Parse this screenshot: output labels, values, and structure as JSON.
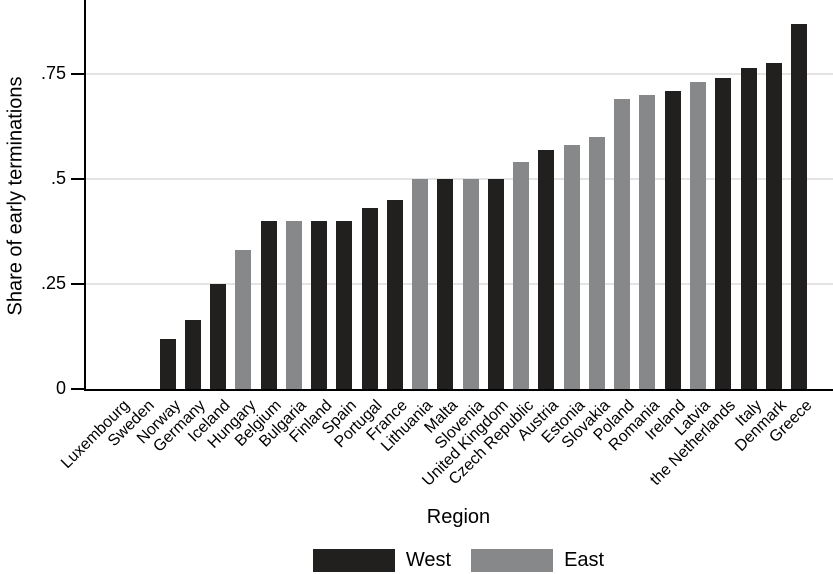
{
  "chart_data": {
    "type": "bar",
    "title": "",
    "xlabel": "Region",
    "ylabel": "Share of early terminations",
    "ylim": [
      0,
      0.92
    ],
    "grid": "horizontal",
    "legend_position": "bottom-center",
    "yticks": [
      {
        "value": 0,
        "label": "0"
      },
      {
        "value": 0.25,
        "label": ".25"
      },
      {
        "value": 0.5,
        "label": ".5"
      },
      {
        "value": 0.75,
        "label": ".75"
      }
    ],
    "legend": [
      {
        "label": "West",
        "color": "#221f1f"
      },
      {
        "label": "East",
        "color": "#87888a"
      }
    ],
    "colors": {
      "West": "#221f1f",
      "East": "#87888a"
    },
    "bars": [
      {
        "country": "Luxembourg",
        "value": 0,
        "region": "West"
      },
      {
        "country": "Sweden",
        "value": 0,
        "region": "West"
      },
      {
        "country": "Norway",
        "value": 0.12,
        "region": "West"
      },
      {
        "country": "Germany",
        "value": 0.165,
        "region": "West"
      },
      {
        "country": "Iceland",
        "value": 0.25,
        "region": "West"
      },
      {
        "country": "Hungary",
        "value": 0.33,
        "region": "East"
      },
      {
        "country": "Belgium",
        "value": 0.4,
        "region": "West"
      },
      {
        "country": "Bulgaria",
        "value": 0.4,
        "region": "East"
      },
      {
        "country": "Finland",
        "value": 0.4,
        "region": "West"
      },
      {
        "country": "Spain",
        "value": 0.4,
        "region": "West"
      },
      {
        "country": "Portugal",
        "value": 0.43,
        "region": "West"
      },
      {
        "country": "France",
        "value": 0.45,
        "region": "West"
      },
      {
        "country": "Lithuania",
        "value": 0.5,
        "region": "East"
      },
      {
        "country": "Malta",
        "value": 0.5,
        "region": "West"
      },
      {
        "country": "Slovenia",
        "value": 0.5,
        "region": "East"
      },
      {
        "country": "United Kingdom",
        "value": 0.5,
        "region": "West"
      },
      {
        "country": "Czech Republic",
        "value": 0.54,
        "region": "East"
      },
      {
        "country": "Austria",
        "value": 0.57,
        "region": "West"
      },
      {
        "country": "Estonia",
        "value": 0.58,
        "region": "East"
      },
      {
        "country": "Slovakia",
        "value": 0.6,
        "region": "East"
      },
      {
        "country": "Poland",
        "value": 0.69,
        "region": "East"
      },
      {
        "country": "Romania",
        "value": 0.7,
        "region": "East"
      },
      {
        "country": "Ireland",
        "value": 0.71,
        "region": "West"
      },
      {
        "country": "Latvia",
        "value": 0.73,
        "region": "East"
      },
      {
        "country": "the Netherlands",
        "value": 0.74,
        "region": "West"
      },
      {
        "country": "Italy",
        "value": 0.765,
        "region": "West"
      },
      {
        "country": "Denmark",
        "value": 0.775,
        "region": "West"
      },
      {
        "country": "Greece",
        "value": 0.87,
        "region": "West"
      }
    ]
  }
}
